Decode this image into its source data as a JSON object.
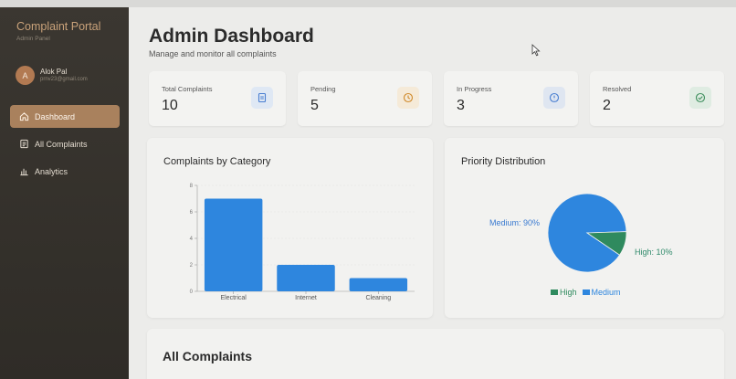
{
  "brand": {
    "title": "Complaint Portal",
    "subtitle": "Admin Panel"
  },
  "user": {
    "initial": "A",
    "name": "Alok Pal",
    "email": "prnv23@gmail.com"
  },
  "nav": [
    {
      "label": "Dashboard",
      "icon": "home-icon",
      "active": true
    },
    {
      "label": "All Complaints",
      "icon": "document-icon",
      "active": false
    },
    {
      "label": "Analytics",
      "icon": "bar-chart-icon",
      "active": false
    }
  ],
  "header": {
    "title": "Admin Dashboard",
    "subtitle": "Manage and monitor all complaints"
  },
  "stats": [
    {
      "label": "Total Complaints",
      "value": "10",
      "icon": "document-icon",
      "color": "#4a7fd1",
      "bg": "#dfe8f4"
    },
    {
      "label": "Pending",
      "value": "5",
      "icon": "clock-icon",
      "color": "#d08a2b",
      "bg": "#f5ead8"
    },
    {
      "label": "In Progress",
      "value": "3",
      "icon": "alert-circle-icon",
      "color": "#4a7fd1",
      "bg": "#dfe6f1"
    },
    {
      "label": "Resolved",
      "value": "2",
      "icon": "check-circle-icon",
      "color": "#3e8f5d",
      "bg": "#dfece2"
    }
  ],
  "category_panel": {
    "title": "Complaints by Category"
  },
  "priority_panel": {
    "title": "Priority Distribution"
  },
  "section": {
    "title": "All Complaints"
  },
  "colors": {
    "bar": "#2e86de",
    "pie_medium": "#2e86de",
    "pie_high": "#2f8a5e"
  },
  "chart_data": [
    {
      "type": "bar",
      "title": "Complaints by Category",
      "categories": [
        "Electrical",
        "Internet",
        "Cleaning"
      ],
      "values": [
        7,
        2,
        1
      ],
      "yticks": [
        "0",
        "2",
        "4",
        "6",
        "8"
      ],
      "ylim": [
        0,
        8
      ],
      "grid": true
    },
    {
      "type": "pie",
      "title": "Priority Distribution",
      "slices": [
        {
          "name": "High",
          "value": 10,
          "label": "High: 10%"
        },
        {
          "name": "Medium",
          "value": 90,
          "label": "Medium: 90%"
        }
      ],
      "legend": [
        "High",
        "Medium"
      ],
      "legend_placement": "bottom"
    }
  ]
}
